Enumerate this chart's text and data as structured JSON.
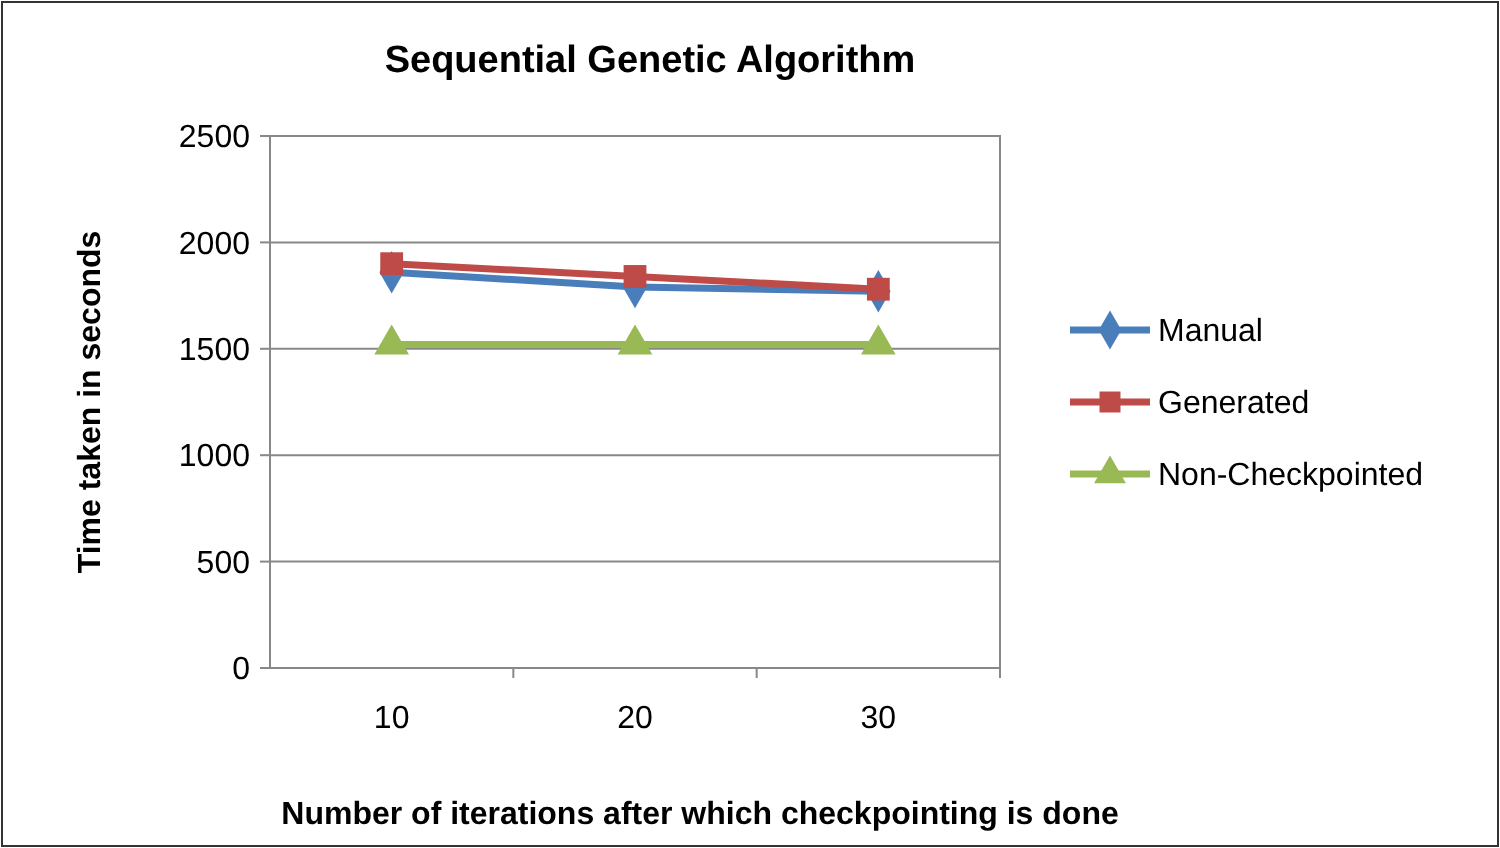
{
  "chart_data": {
    "type": "line",
    "title": "Sequential Genetic Algorithm",
    "xlabel": "Number of iterations after which checkpointing is done",
    "ylabel": "Time taken in seconds",
    "categories": [
      "10",
      "20",
      "30"
    ],
    "ylim": [
      0,
      2500
    ],
    "yticks": [
      0,
      500,
      1000,
      1500,
      2000,
      2500
    ],
    "grid": "y",
    "legend": "right",
    "series": [
      {
        "name": "Manual",
        "color": "#4a7ebb",
        "marker": "diamond",
        "values": [
          1860,
          1790,
          1770
        ]
      },
      {
        "name": "Generated",
        "color": "#be4b48",
        "marker": "square",
        "values": [
          1900,
          1840,
          1780
        ]
      },
      {
        "name": "Non-Checkpointed",
        "color": "#98b954",
        "marker": "triangle",
        "values": [
          1520,
          1520,
          1520
        ]
      }
    ]
  }
}
